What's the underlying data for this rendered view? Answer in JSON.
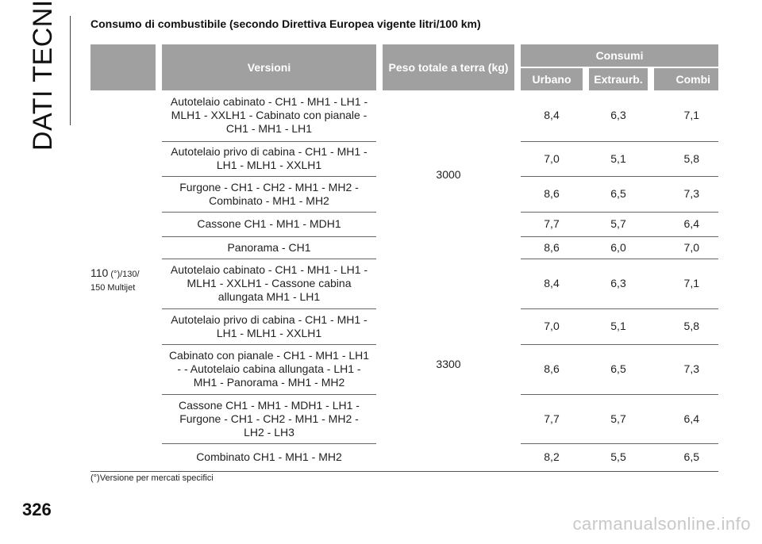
{
  "section_title": "DATI TECNICI",
  "heading": "Consumo di combustibile (secondo Direttiva Europea vigente litri/100 km)",
  "table": {
    "headers": {
      "versioni": "Versioni",
      "peso": "Peso totale a terra (kg)",
      "consumi": "Consumi",
      "urbano": "Urbano",
      "extraurb": "Extraurb.",
      "combi": "Combi"
    },
    "model_main": "110",
    "model_sub": " (°)/130/ 150 Multijet",
    "groups": [
      {
        "peso": "3000",
        "rows": [
          {
            "versione": "Autotelaio cabinato - CH1 - MH1 - LH1 - MLH1 - XXLH1 - Cabinato con pianale - CH1 - MH1 - LH1",
            "urbano": "8,4",
            "extraurb": "6,3",
            "combi": "7,1"
          },
          {
            "versione": "Autotelaio privo di cabina - CH1 - MH1 - LH1 - MLH1 - XXLH1",
            "urbano": "7,0",
            "extraurb": "5,1",
            "combi": "5,8"
          },
          {
            "versione": "Furgone - CH1 - CH2 - MH1 - MH2 - Combinato - MH1 - MH2",
            "urbano": "8,6",
            "extraurb": "6,5",
            "combi": "7,3"
          },
          {
            "versione": "Cassone CH1 - MH1 - MDH1",
            "urbano": "7,7",
            "extraurb": "5,7",
            "combi": "6,4"
          },
          {
            "versione": "Panorama - CH1",
            "urbano": "8,6",
            "extraurb": "6,0",
            "combi": "7,0"
          }
        ]
      },
      {
        "peso": "3300",
        "rows": [
          {
            "versione": "Autotelaio cabinato - CH1 - MH1 - LH1 - MLH1 - XXLH1 - Cassone cabina allungata MH1 - LH1",
            "urbano": "8,4",
            "extraurb": "6,3",
            "combi": "7,1"
          },
          {
            "versione": "Autotelaio privo di cabina - CH1 - MH1 - LH1 - MLH1 - XXLH1",
            "urbano": "7,0",
            "extraurb": "5,1",
            "combi": "5,8"
          },
          {
            "versione": "Cabinato con pianale - CH1 - MH1 - LH1 - - Autotelaio cabina allungata - LH1 - MH1 - Panorama - MH1 - MH2",
            "urbano": "8,6",
            "extraurb": "6,5",
            "combi": "7,3"
          },
          {
            "versione": "Cassone CH1 - MH1 - MDH1 - LH1 - Furgone - CH1 - CH2 - MH1 - MH2 - LH2 - LH3",
            "urbano": "7,7",
            "extraurb": "5,7",
            "combi": "6,4"
          },
          {
            "versione": "Combinato CH1 - MH1 - MH2",
            "urbano": "8,2",
            "extraurb": "5,5",
            "combi": "6,5"
          }
        ]
      }
    ]
  },
  "footnote": "(°)Versione per mercati specifici",
  "page_number": "326",
  "watermark": "carmanualsonline.info"
}
